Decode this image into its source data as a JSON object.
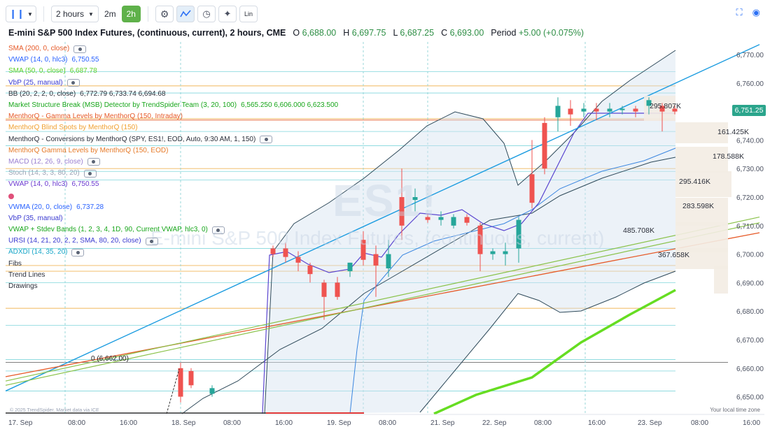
{
  "toolbar": {
    "interval_label": "2 hours",
    "quick_interval_1": "2m",
    "quick_interval_2": "2h",
    "lin_label": "Lin"
  },
  "header": {
    "title": "E-mini S&P 500 Index Futures, (continuous, current), 2 hours, CME",
    "open_label": "O",
    "open_value": "6,688.00",
    "high_label": "H",
    "high_value": "6,697.75",
    "low_label": "L",
    "low_value": "6,687.25",
    "close_label": "C",
    "close_value": "6,693.00",
    "period_label": "Period",
    "period_value": "+5.00 (+0.075%)"
  },
  "legend": [
    {
      "text": "SMA (200, 0, close)",
      "value": "",
      "color": "#e65a28",
      "eye": true
    },
    {
      "text": "VWAP (14, 0, hlc3)",
      "value": "6,750.55",
      "color": "#2962ff",
      "eye": false
    },
    {
      "text": "SMA (50, 0, close)",
      "value": "6,687.78",
      "color": "#5fd12a",
      "eye": false
    },
    {
      "text": "VbP (25, manual)",
      "value": "",
      "color": "#3a3ad0",
      "eye": true
    },
    {
      "text": "BB (20, 2, 2, 0, close)",
      "value": "6,772.79  6,733.74  6,694.68",
      "color": "#2a2e39",
      "eye": false
    },
    {
      "text": "Market Structure Break (MSB) Detector by TrendSpider Team (3, 20, 100)",
      "value": "6,565.250  6,606.000  6,623.500",
      "color": "#17a61a",
      "eye": false
    },
    {
      "text": "MenthorQ - Gamma Levels by MenthorQ (150, Intraday)",
      "value": "",
      "color": "#e65a28",
      "eye": false
    },
    {
      "text": "MenthorQ Blind Spots by MenthorQ (150)",
      "value": "",
      "color": "#f0a030",
      "eye": false
    },
    {
      "text": "MenthorQ - Conversions by MenthorQ (SPY, ES1!, EOD, Auto, 9:30 AM, 1, 150)",
      "value": "",
      "color": "#2a2e39",
      "eye": true
    },
    {
      "text": "MenthorQ Gamma Levels by MenthorQ (150, EOD)",
      "value": "",
      "color": "#e67a28",
      "eye": false
    },
    {
      "text": "MACD (12, 26, 9, close)",
      "value": "",
      "color": "#9a7fd1",
      "eye": true
    },
    {
      "text": "Stoch (14, 3, 3, 80, 20)",
      "value": "",
      "color": "#9aa3b5",
      "eye": true
    },
    {
      "text": "VWAP (14, 0, hlc3)",
      "value": "6,750.55",
      "color": "#6a3ad0",
      "eye": false
    },
    {
      "text": "",
      "value": "",
      "color": "#e0507a",
      "eye": false
    },
    {
      "text": "VWMA (20, 0, close)",
      "value": "6,737.28",
      "color": "#2962ff",
      "eye": false
    },
    {
      "text": "VbP (35, manual)",
      "value": "",
      "color": "#3a3ad0",
      "eye": false
    },
    {
      "text": "VWAP + Stdev Bands (1, 2, 3, 4, 1D, 90, Current VWAP, hlc3, 0)",
      "value": "",
      "color": "#17a61a",
      "eye": true
    },
    {
      "text": "URSI (14, 21, 20, 2, 2, SMA, 80, 20, close)",
      "value": "",
      "color": "#3a3ad0",
      "eye": true
    },
    {
      "text": "ADXDI (14, 35, 20)",
      "value": "",
      "color": "#17a6c8",
      "eye": true
    },
    {
      "text": "Fibs",
      "value": "",
      "color": "#2a2e39",
      "eye": false
    },
    {
      "text": "Trend Lines",
      "value": "",
      "color": "#2a2e39",
      "eye": false
    },
    {
      "text": "Drawings",
      "value": "",
      "color": "#2a2e39",
      "eye": false
    }
  ],
  "watermark": {
    "symbol": "ES1!",
    "subtitle": "E-mini S&P 500 Index Futures, (continuous, current)"
  },
  "price_axis": {
    "ticks": [
      "6,770.00",
      "6,760.00",
      "6,750.00",
      "6,740.00",
      "6,730.00",
      "6,720.00",
      "6,710.00",
      "6,700.00",
      "6,690.00",
      "6,680.00",
      "6,670.00",
      "6,660.00",
      "6,650.00"
    ],
    "current_price": "6,751.25"
  },
  "time_axis": {
    "ticks": [
      "17. Sep",
      "08:00",
      "16:00",
      "18. Sep",
      "08:00",
      "16:00",
      "19. Sep",
      "08:00",
      "21. Sep",
      "22. Sep",
      "08:00",
      "16:00",
      "23. Sep",
      "08:00",
      "16:00"
    ],
    "local_time_label": "Your local time zone"
  },
  "annotations": {
    "level_label": "0 (6,662.00)",
    "copyright": "© 2025 TrendSpider. Market data via ICE"
  },
  "volume_profile_labels": [
    "295.807K",
    "161.425K",
    "178.588K",
    "295.416K",
    "283.598K",
    "485.708K",
    "367.658K"
  ],
  "colors": {
    "up": "#26a69a",
    "down": "#ef5350",
    "accent": "#5fb14a",
    "trendline": "#1c9ce0",
    "sma200": "#e65a28",
    "sma50": "#66dd22"
  }
}
